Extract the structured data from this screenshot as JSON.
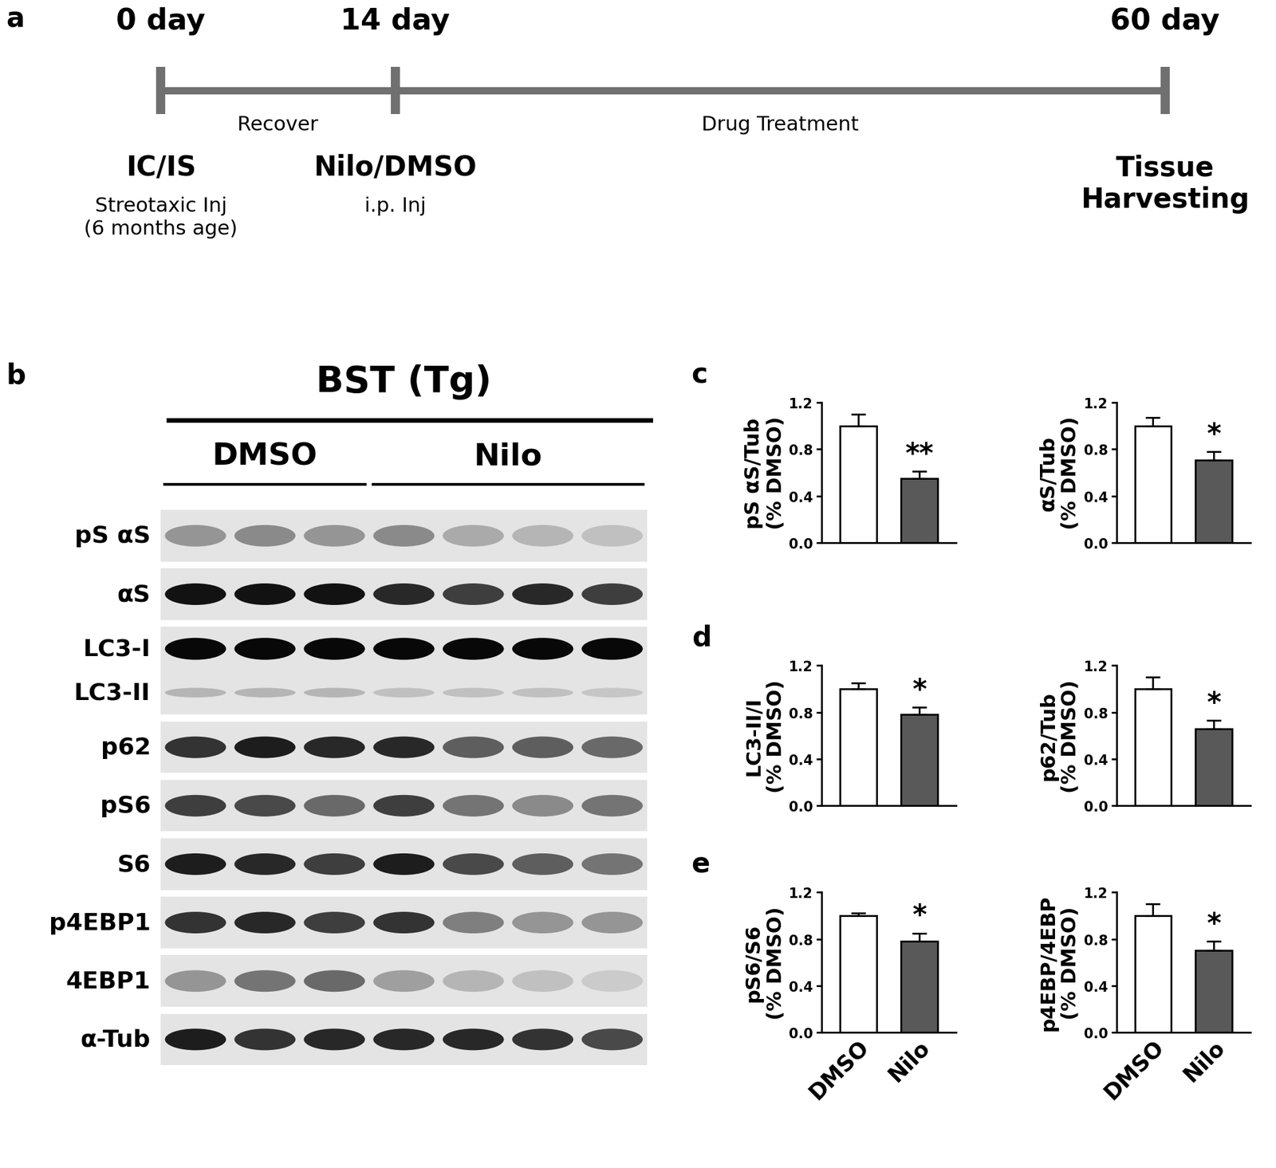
{
  "timeline": {
    "panel": "a",
    "points": [
      {
        "day": 0,
        "label": "0 day",
        "event": "IC/IS",
        "detail": "Streotaxic Inj\n(6 months age)"
      },
      {
        "day": 14,
        "label": "14 day",
        "event": "Nilo/DMSO",
        "detail": "i.p. Inj"
      },
      {
        "day": 60,
        "label": "60 day",
        "event": "Tissue\nHarvesting"
      }
    ],
    "phases": [
      {
        "from": 0,
        "to": 14,
        "label": "Recover"
      },
      {
        "from": 14,
        "to": 60,
        "label": "Drug Treatment"
      }
    ]
  },
  "blot": {
    "panel": "b",
    "title": "BST (Tg)",
    "groups": [
      {
        "name": "DMSO",
        "lanes": 3
      },
      {
        "name": "Nilo",
        "lanes": 4
      }
    ],
    "rows": [
      {
        "bands": [
          {
            "label": "pS αS",
            "intensity": [
              0.35,
              0.4,
              0.35,
              0.4,
              0.25,
              0.2,
              0.15
            ]
          }
        ]
      },
      {
        "bands": [
          {
            "label": "αS",
            "intensity": [
              0.95,
              0.95,
              0.95,
              0.85,
              0.75,
              0.85,
              0.75
            ]
          }
        ]
      },
      {
        "bands": [
          {
            "label": "LC3-I",
            "intensity": [
              1.0,
              1.0,
              1.0,
              1.0,
              1.0,
              1.0,
              1.0
            ]
          },
          {
            "label": "LC3-II",
            "intensity": [
              0.2,
              0.2,
              0.2,
              0.15,
              0.15,
              0.15,
              0.12
            ]
          }
        ]
      },
      {
        "bands": [
          {
            "label": "p62",
            "intensity": [
              0.8,
              0.9,
              0.85,
              0.85,
              0.6,
              0.6,
              0.55
            ]
          }
        ]
      },
      {
        "bands": [
          {
            "label": "pS6",
            "intensity": [
              0.75,
              0.7,
              0.55,
              0.75,
              0.5,
              0.4,
              0.5
            ]
          }
        ]
      },
      {
        "bands": [
          {
            "label": "S6",
            "intensity": [
              0.9,
              0.85,
              0.75,
              0.9,
              0.7,
              0.6,
              0.5
            ]
          }
        ]
      },
      {
        "bands": [
          {
            "label": "p4EBP1",
            "intensity": [
              0.8,
              0.85,
              0.75,
              0.8,
              0.45,
              0.35,
              0.35
            ]
          }
        ]
      },
      {
        "bands": [
          {
            "label": "4EBP1",
            "intensity": [
              0.35,
              0.5,
              0.55,
              0.3,
              0.2,
              0.15,
              0.1
            ]
          }
        ]
      },
      {
        "bands": [
          {
            "label": "α-Tub",
            "intensity": [
              0.9,
              0.8,
              0.85,
              0.85,
              0.85,
              0.8,
              0.7
            ]
          }
        ]
      }
    ]
  },
  "chart_data": [
    {
      "type": "bar",
      "panel": "c",
      "ylabel": "pS αS/Tub\n(% DMSO)",
      "categories": [
        "DMSO",
        "Nilo"
      ],
      "values": [
        1.0,
        0.55
      ],
      "errors": [
        0.1,
        0.06
      ],
      "colors": [
        "#ffffff",
        "#595959"
      ],
      "ylim": [
        0.0,
        1.2
      ],
      "yticks": [
        0.0,
        0.4,
        0.8,
        1.2
      ],
      "tick_labels": "y",
      "annotation": "**"
    },
    {
      "type": "bar",
      "ylabel": "αS/Tub\n(% DMSO)",
      "categories": [
        "DMSO",
        "Nilo"
      ],
      "values": [
        1.0,
        0.71
      ],
      "errors": [
        0.07,
        0.07
      ],
      "colors": [
        "#ffffff",
        "#595959"
      ],
      "ylim": [
        0.0,
        1.2
      ],
      "yticks": [
        0.0,
        0.4,
        0.8,
        1.2
      ],
      "tick_labels": "y",
      "annotation": "*"
    },
    {
      "type": "bar",
      "panel": "d",
      "ylabel": "LC3-II/I\n(% DMSO)",
      "categories": [
        "DMSO",
        "Nilo"
      ],
      "values": [
        1.0,
        0.78
      ],
      "errors": [
        0.05,
        0.06
      ],
      "colors": [
        "#ffffff",
        "#595959"
      ],
      "ylim": [
        0.0,
        1.2
      ],
      "yticks": [
        0.0,
        0.4,
        0.8,
        1.2
      ],
      "tick_labels": "y",
      "annotation": "*"
    },
    {
      "type": "bar",
      "ylabel": "p62/Tub\n(% DMSO)",
      "categories": [
        "DMSO",
        "Nilo"
      ],
      "values": [
        1.0,
        0.66
      ],
      "errors": [
        0.1,
        0.07
      ],
      "colors": [
        "#ffffff",
        "#595959"
      ],
      "ylim": [
        0.0,
        1.2
      ],
      "yticks": [
        0.0,
        0.4,
        0.8,
        1.2
      ],
      "tick_labels": "y",
      "annotation": "*"
    },
    {
      "type": "bar",
      "panel": "e",
      "ylabel": "pS6/S6\n(% DMSO)",
      "categories": [
        "DMSO",
        "Nilo"
      ],
      "values": [
        1.0,
        0.78
      ],
      "errors": [
        0.02,
        0.07
      ],
      "colors": [
        "#ffffff",
        "#595959"
      ],
      "ylim": [
        0.0,
        1.2
      ],
      "yticks": [
        0.0,
        0.4,
        0.8,
        1.2
      ],
      "annotation": "*"
    },
    {
      "type": "bar",
      "ylabel": "p4EBP/4EBP\n(% DMSO)",
      "categories": [
        "DMSO",
        "Nilo"
      ],
      "values": [
        1.0,
        0.7
      ],
      "errors": [
        0.1,
        0.08
      ],
      "colors": [
        "#ffffff",
        "#595959"
      ],
      "ylim": [
        0.0,
        1.2
      ],
      "yticks": [
        0.0,
        0.4,
        0.8,
        1.2
      ],
      "annotation": "*"
    }
  ]
}
